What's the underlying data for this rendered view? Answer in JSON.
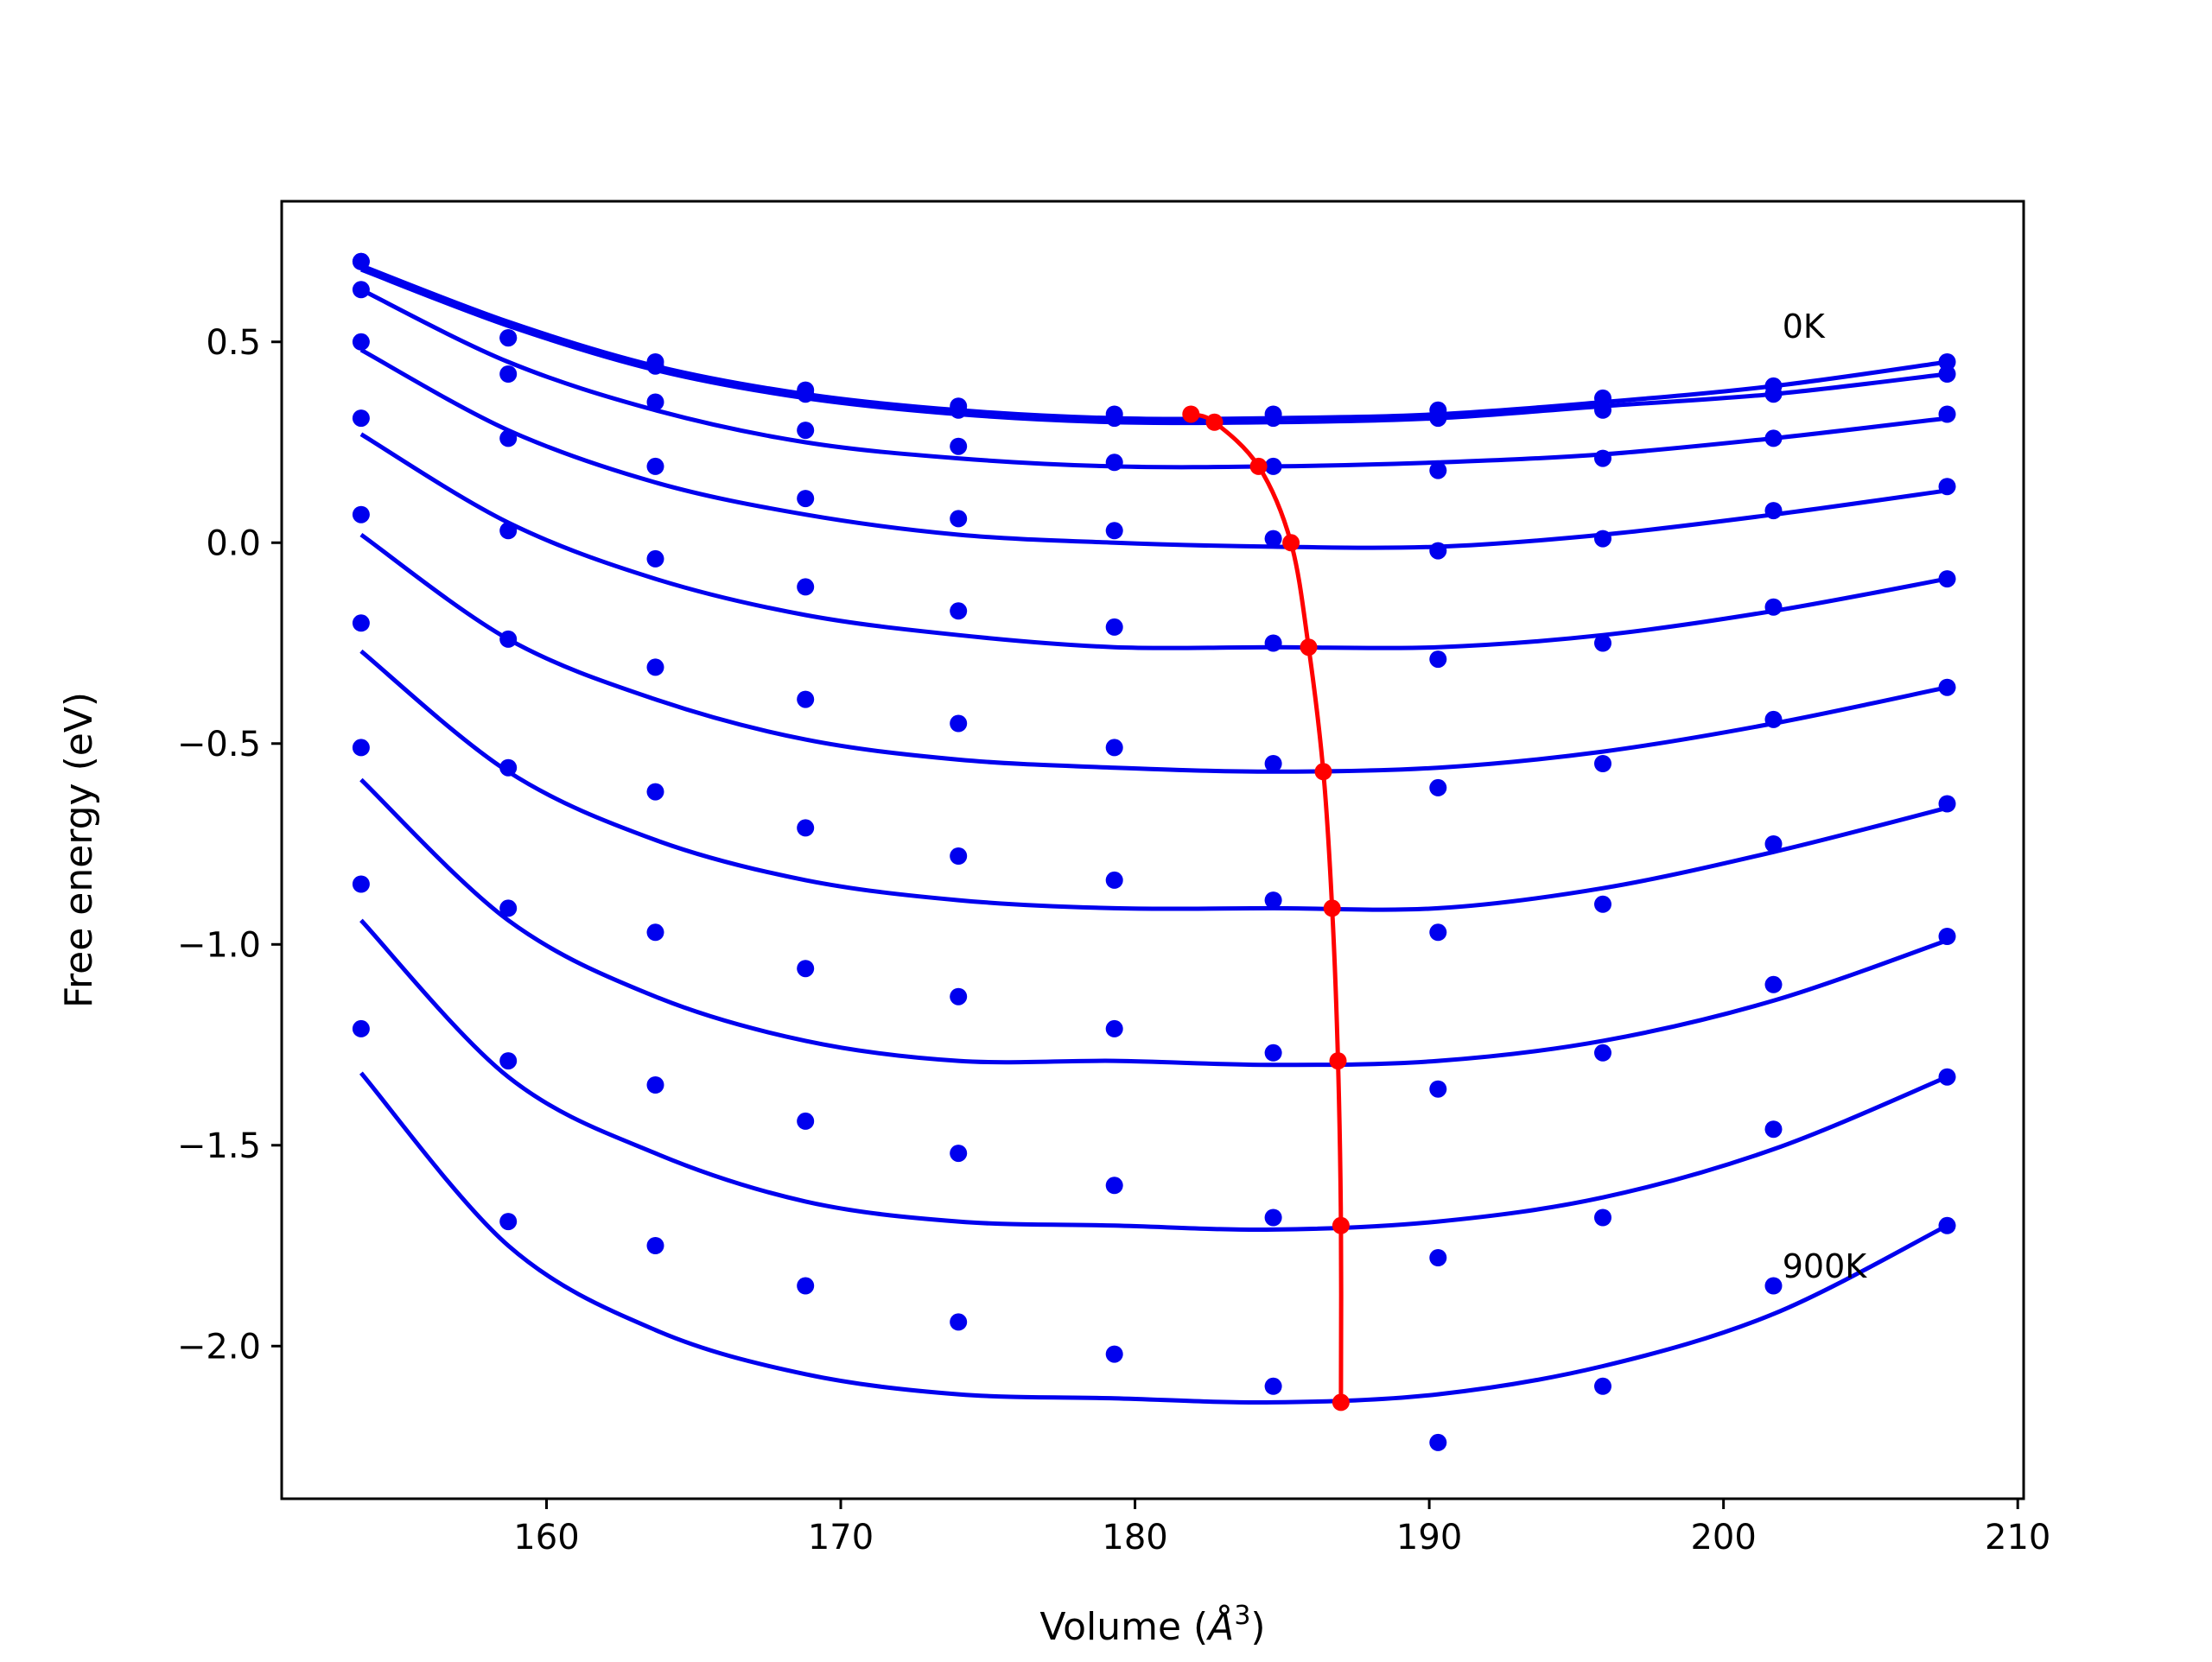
{
  "chart_data": {
    "type": "line",
    "title": "",
    "xlabel": "Volume (",
    "xlabel_symbol": "Å",
    "xlabel_sup": "3",
    "xlabel_close": ")",
    "ylabel": "Free energy (eV)",
    "xlim": [
      151,
      210.2
    ],
    "ylim": [
      -2.38,
      0.85
    ],
    "xticks": [
      160,
      170,
      180,
      190,
      200,
      210
    ],
    "xtick_labels": [
      "160",
      "170",
      "180",
      "190",
      "200",
      "210"
    ],
    "yticks": [
      0.5,
      0.0,
      -0.5,
      -1.0,
      -1.5,
      -2.0
    ],
    "ytick_labels": [
      "0.5",
      "0.0",
      "−0.5",
      "−1.0",
      "−1.5",
      "−2.0"
    ],
    "grid": false,
    "volumes": [
      153.7,
      158.7,
      163.7,
      168.8,
      174.0,
      179.3,
      184.7,
      190.3,
      195.9,
      201.7,
      207.6
    ],
    "series": [
      {
        "color": "#0000ee",
        "points": [
          0.7,
          0.51,
          0.45,
          0.38,
          0.34,
          0.32,
          0.32,
          0.33,
          0.36,
          0.39,
          0.45
        ],
        "fit": [
          0.69,
          0.55,
          0.44,
          0.37,
          0.33,
          0.31,
          0.31,
          0.32,
          0.35,
          0.39,
          0.45
        ]
      },
      {
        "color": "#0000ee",
        "points": [
          0.7,
          0.51,
          0.44,
          0.37,
          0.33,
          0.31,
          0.31,
          0.31,
          0.33,
          0.37,
          0.42
        ],
        "fit": [
          0.68,
          0.54,
          0.43,
          0.36,
          0.32,
          0.3,
          0.3,
          0.31,
          0.34,
          0.37,
          0.42
        ]
      },
      {
        "color": "#0000ee",
        "points": [
          0.63,
          0.42,
          0.35,
          0.28,
          0.24,
          0.2,
          0.19,
          0.18,
          0.21,
          0.26,
          0.32
        ],
        "fit": [
          0.63,
          0.45,
          0.33,
          0.25,
          0.21,
          0.19,
          0.19,
          0.2,
          0.22,
          0.26,
          0.31
        ]
      },
      {
        "color": "#0000ee",
        "points": [
          0.5,
          0.26,
          0.19,
          0.11,
          0.06,
          0.03,
          0.01,
          -0.02,
          0.01,
          0.08,
          0.14
        ],
        "fit": [
          0.48,
          0.28,
          0.15,
          0.07,
          0.02,
          0.0,
          -0.01,
          -0.01,
          0.02,
          0.07,
          0.13
        ]
      },
      {
        "color": "#0000ee",
        "points": [
          0.31,
          0.03,
          -0.04,
          -0.11,
          -0.17,
          -0.21,
          -0.25,
          -0.29,
          -0.25,
          -0.16,
          -0.09
        ],
        "fit": [
          0.27,
          0.05,
          -0.09,
          -0.18,
          -0.23,
          -0.26,
          -0.26,
          -0.26,
          -0.23,
          -0.17,
          -0.09
        ]
      },
      {
        "color": "#0000ee",
        "points": [
          0.07,
          -0.24,
          -0.31,
          -0.39,
          -0.45,
          -0.51,
          -0.55,
          -0.61,
          -0.55,
          -0.44,
          -0.36
        ],
        "fit": [
          0.02,
          -0.24,
          -0.39,
          -0.49,
          -0.54,
          -0.56,
          -0.57,
          -0.56,
          -0.52,
          -0.45,
          -0.36
        ]
      },
      {
        "color": "#0000ee",
        "points": [
          -0.2,
          -0.56,
          -0.62,
          -0.71,
          -0.78,
          -0.84,
          -0.89,
          -0.97,
          -0.9,
          -0.75,
          -0.65
        ],
        "fit": [
          -0.27,
          -0.57,
          -0.74,
          -0.84,
          -0.89,
          -0.91,
          -0.91,
          -0.91,
          -0.86,
          -0.77,
          -0.66
        ]
      },
      {
        "color": "#0000ee",
        "points": [
          -0.51,
          -0.91,
          -0.97,
          -1.06,
          -1.13,
          -1.21,
          -1.27,
          -1.36,
          -1.27,
          -1.1,
          -0.98
        ],
        "fit": [
          -0.59,
          -0.94,
          -1.13,
          -1.24,
          -1.29,
          -1.29,
          -1.3,
          -1.29,
          -1.24,
          -1.14,
          -0.99
        ]
      },
      {
        "color": "#0000ee",
        "points": [
          -0.85,
          -1.29,
          -1.35,
          -1.44,
          -1.52,
          -1.6,
          -1.68,
          -1.78,
          -1.68,
          -1.46,
          -1.33
        ],
        "fit": [
          -0.94,
          -1.33,
          -1.52,
          -1.64,
          -1.69,
          -1.7,
          -1.71,
          -1.69,
          -1.63,
          -1.51,
          -1.33
        ]
      },
      {
        "color": "#0000ee",
        "points": [
          -1.21,
          -1.69,
          -1.75,
          -1.85,
          -1.94,
          -2.02,
          -2.1,
          -2.24,
          -2.1,
          -1.85,
          -1.7
        ],
        "fit": [
          -1.32,
          -1.75,
          -1.96,
          -2.07,
          -2.12,
          -2.13,
          -2.14,
          -2.12,
          -2.05,
          -1.92,
          -1.7
        ]
      }
    ],
    "minimum_curve": {
      "color": "#ff0000",
      "x": [
        181.9,
        182.7,
        184.2,
        185.3,
        185.9,
        186.4,
        186.7,
        186.9,
        187.0,
        187.0
      ],
      "y": [
        0.32,
        0.3,
        0.19,
        0.0,
        -0.26,
        -0.57,
        -0.91,
        -1.29,
        -1.7,
        -2.14
      ]
    },
    "annotations": [
      {
        "text": "0K",
        "x": 202.0,
        "y": 0.51
      },
      {
        "text": "900K",
        "x": 202.0,
        "y": -1.83
      }
    ]
  }
}
